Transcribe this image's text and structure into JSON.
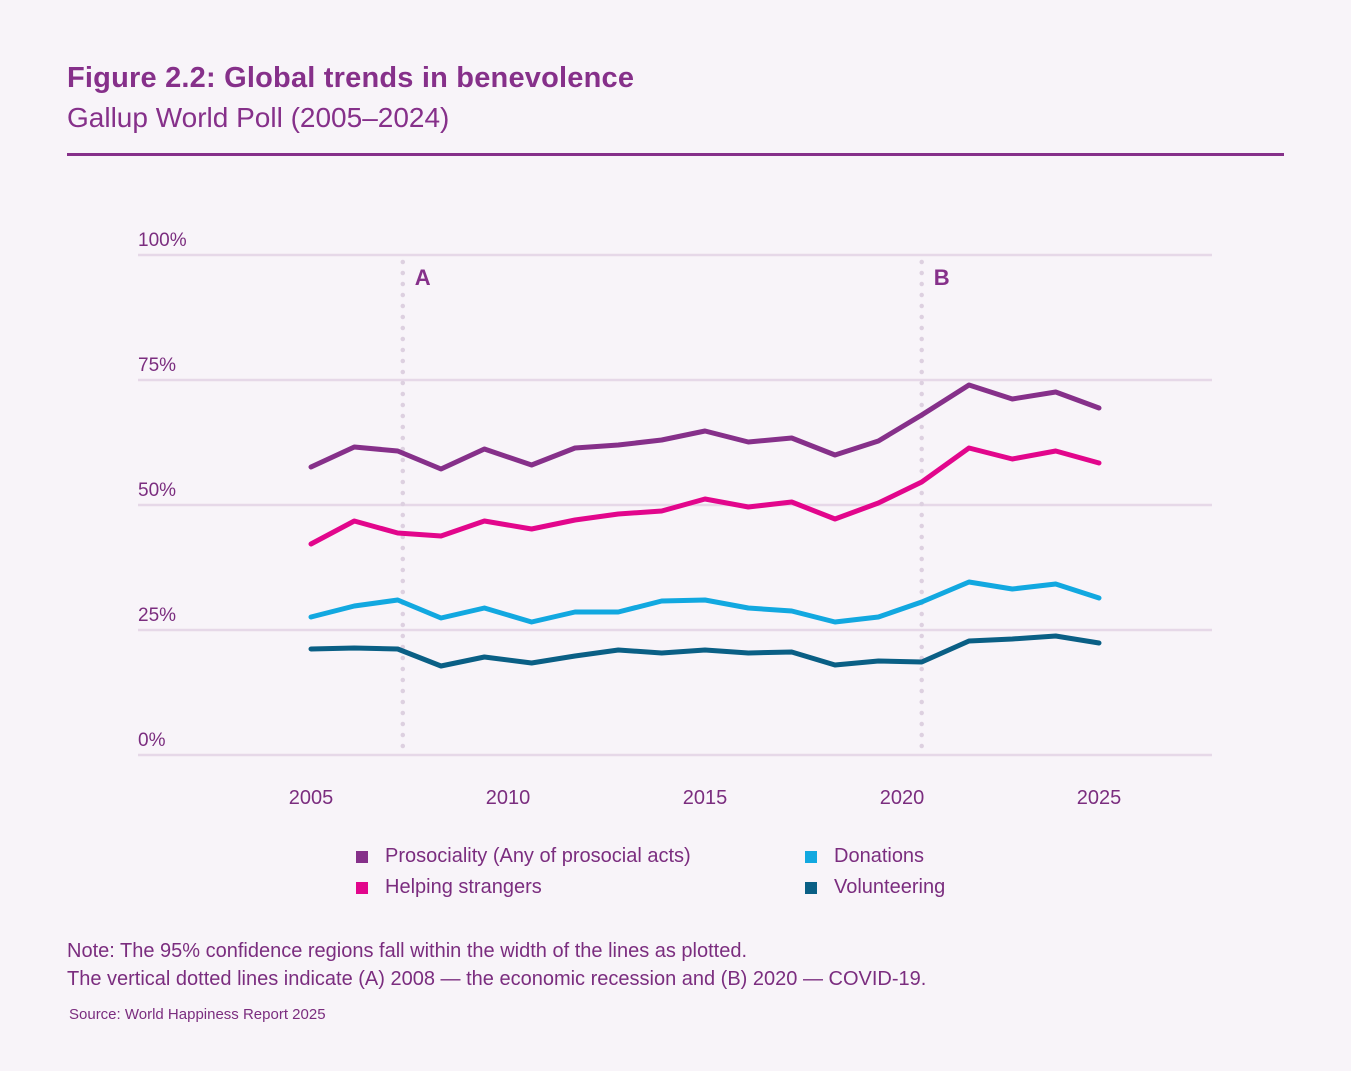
{
  "header": {
    "title": "Figure 2.2: Global trends in benevolence",
    "subtitle": "Gallup World Poll (2005–2024)"
  },
  "chart_data": {
    "type": "line",
    "title": "Figure 2.2: Global trends in benevolence",
    "subtitle": "Gallup World Poll (2005–2024)",
    "xlabel": "",
    "ylabel": "",
    "xlim": [
      2005,
      2025
    ],
    "ylim": [
      0,
      100
    ],
    "x_ticks": [
      2005,
      2010,
      2015,
      2020,
      2025
    ],
    "x_tick_labels": [
      "2005",
      "2010",
      "2015",
      "2020",
      "2025"
    ],
    "y_ticks": [
      0,
      25,
      50,
      75,
      100
    ],
    "y_tick_labels": [
      "0%",
      "25%",
      "50%",
      "75%",
      "100%"
    ],
    "grid": "horizontal",
    "x": [
      2005.0,
      2006.1,
      2007.2,
      2008.3,
      2009.4,
      2010.6,
      2011.7,
      2012.8,
      2013.9,
      2015.0,
      2016.1,
      2017.2,
      2018.3,
      2019.4,
      2020.5,
      2021.7,
      2022.8,
      2023.9,
      2025.0
    ],
    "series": [
      {
        "name": "Prosociality (Any of prosocial acts)",
        "color": "#86308a",
        "values": [
          57.6,
          61.6,
          60.8,
          57.2,
          61.2,
          58.0,
          61.4,
          62.0,
          63.0,
          64.8,
          62.6,
          63.4,
          60.0,
          62.8,
          68.0,
          74.0,
          71.2,
          72.6,
          69.4
        ]
      },
      {
        "name": "Helping strangers",
        "color": "#e2068c",
        "values": [
          42.2,
          46.8,
          44.4,
          43.8,
          46.8,
          45.2,
          47.0,
          48.2,
          48.8,
          51.2,
          49.6,
          50.6,
          47.2,
          50.4,
          54.6,
          61.4,
          59.2,
          60.8,
          58.4
        ]
      },
      {
        "name": "Donations",
        "color": "#12a8e0",
        "values": [
          27.6,
          29.8,
          31.0,
          27.4,
          29.4,
          26.6,
          28.6,
          28.6,
          30.8,
          31.0,
          29.4,
          28.8,
          26.6,
          27.6,
          30.6,
          34.6,
          33.2,
          34.2,
          31.4
        ]
      },
      {
        "name": "Volunteering",
        "color": "#0a5f85",
        "values": [
          21.2,
          21.4,
          21.2,
          17.8,
          19.6,
          18.4,
          19.8,
          21.0,
          20.4,
          21.0,
          20.4,
          20.6,
          18.0,
          18.8,
          18.6,
          22.8,
          23.2,
          23.8,
          22.4
        ]
      }
    ],
    "annotations": [
      {
        "label": "A",
        "x": 2007.33,
        "meaning": "2008 — the economic recession",
        "style": "vertical dotted line"
      },
      {
        "label": "B",
        "x": 2020.5,
        "meaning": "2020 — COVID-19",
        "style": "vertical dotted line"
      }
    ],
    "legend_position": "bottom-center"
  },
  "legend": {
    "items": [
      {
        "label": "Prosociality (Any of prosocial acts)",
        "color": "#86308a"
      },
      {
        "label": "Helping strangers",
        "color": "#e2068c"
      },
      {
        "label": "Donations",
        "color": "#12a8e0"
      },
      {
        "label": "Volunteering",
        "color": "#0a5f85"
      }
    ]
  },
  "notes": {
    "line1": "Note: The 95% confidence regions fall within the width of the lines as plotted.",
    "line2": "The vertical dotted lines indicate (A) 2008 — the economic recession and (B) 2020 — COVID-19.",
    "source": "Source: World Happiness Report 2025"
  },
  "colors": {
    "accent": "#86308a",
    "gridline": "#e6d8e8",
    "dotted_marker": "#ddd0e0",
    "background": "#f8f4f9"
  }
}
